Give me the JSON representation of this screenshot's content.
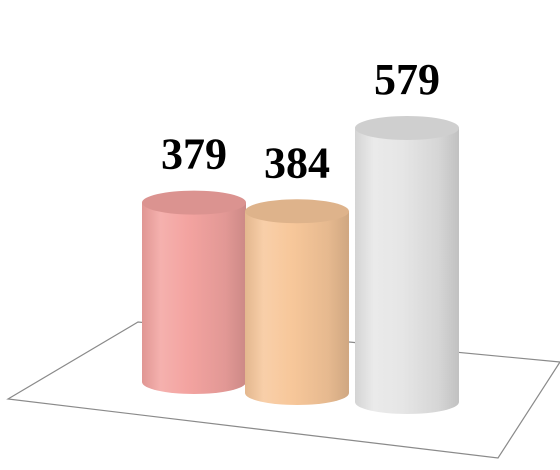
{
  "chart_data": {
    "type": "bar",
    "style": "3d-cylinder",
    "categories": [
      "",
      "",
      ""
    ],
    "values": [
      379,
      384,
      579
    ],
    "value_labels": [
      "379",
      "384",
      "579"
    ],
    "title": "",
    "xlabel": "",
    "ylabel": "",
    "ylim": [
      0,
      620
    ],
    "grid": false,
    "legend": "none",
    "colors": [
      "#f3a3a0",
      "#f7c79a",
      "#e6e6e6"
    ]
  }
}
